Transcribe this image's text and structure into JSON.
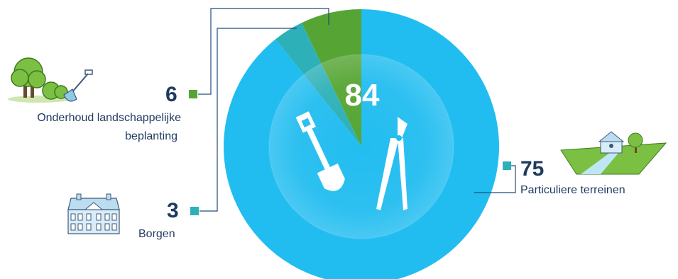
{
  "colors": {
    "particuliere": "#22bdf0",
    "borgen": "#2db0b8",
    "onderhoud": "#56a534",
    "text": "#1f3a5f",
    "connector": "#1f4e79"
  },
  "chart_data": {
    "type": "pie",
    "total": "84",
    "slices": [
      {
        "label": "Onderhoud landschappelijke beplanting",
        "value": 6,
        "color": "#56a534",
        "icon": "trees-and-shovel-icon"
      },
      {
        "label": "Borgen",
        "value": 3,
        "color": "#2db0b8",
        "icon": "manor-house-icon"
      },
      {
        "label": "Particuliere terreinen",
        "value": 75,
        "color": "#22bdf0",
        "icon": "estate-landscape-icon"
      }
    ],
    "labels_display": {
      "onderhoud_value": "6",
      "onderhoud_line1": "Onderhoud landschappelijke",
      "onderhoud_line2": "beplanting",
      "borgen_value": "3",
      "borgen_label": "Borgen",
      "particuliere_value": "75",
      "particuliere_label": "Particuliere terreinen"
    },
    "center_icon": "shovel-and-pruner-icon"
  }
}
